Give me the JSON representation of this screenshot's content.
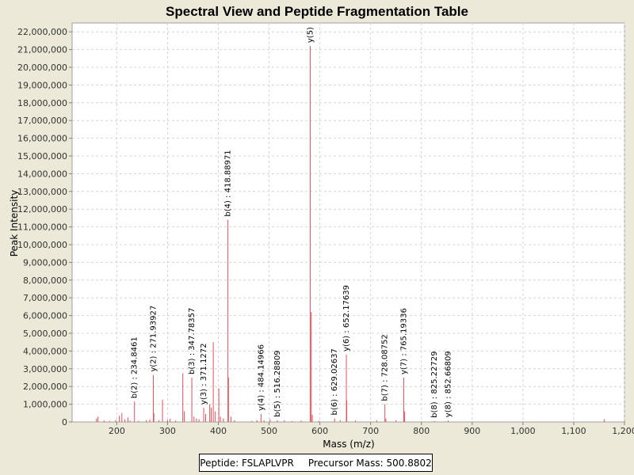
{
  "chart_data": {
    "type": "bar",
    "title": "Spectral View and Peptide Fragmentation Table",
    "xlabel": "Mass (m/z)",
    "ylabel": "Peak Intensity",
    "xlim": [
      112,
      1200
    ],
    "ylim": [
      0,
      22500000
    ],
    "x_ticks": [
      200,
      300,
      400,
      500,
      600,
      700,
      800,
      900,
      1000,
      1100,
      1200
    ],
    "x_tick_labels": [
      "200",
      "300",
      "400",
      "500",
      "600",
      "700",
      "800",
      "900",
      "1,000",
      "1,100",
      "1,200"
    ],
    "y_ticks": [
      0,
      1000000,
      2000000,
      3000000,
      4000000,
      5000000,
      6000000,
      7000000,
      8000000,
      9000000,
      10000000,
      11000000,
      12000000,
      13000000,
      14000000,
      15000000,
      16000000,
      17000000,
      18000000,
      19000000,
      20000000,
      21000000,
      22000000
    ],
    "y_tick_labels": [
      "0",
      "1,000,000",
      "2,000,000",
      "3,000,000",
      "4,000,000",
      "5,000,000",
      "6,000,000",
      "7,000,000",
      "8,000,000",
      "9,000,000",
      "10,000,000",
      "11,000,000",
      "12,000,000",
      "13,000,000",
      "14,000,000",
      "15,000,000",
      "16,000,000",
      "17,000,000",
      "18,000,000",
      "19,000,000",
      "20,000,000",
      "21,000,000",
      "22,000,000"
    ],
    "grid": true,
    "peak_color": "#e8505a",
    "peaks": [
      {
        "mz": 160,
        "intensity": 200000
      },
      {
        "mz": 163,
        "intensity": 300000
      },
      {
        "mz": 175,
        "intensity": 80000
      },
      {
        "mz": 186,
        "intensity": 60000
      },
      {
        "mz": 198,
        "intensity": 120000
      },
      {
        "mz": 205,
        "intensity": 350000
      },
      {
        "mz": 210,
        "intensity": 500000
      },
      {
        "mz": 216,
        "intensity": 150000
      },
      {
        "mz": 222,
        "intensity": 250000
      },
      {
        "mz": 226,
        "intensity": 80000
      },
      {
        "mz": 234.8461,
        "intensity": 1150000
      },
      {
        "mz": 243,
        "intensity": 60000
      },
      {
        "mz": 258,
        "intensity": 100000
      },
      {
        "mz": 265,
        "intensity": 150000
      },
      {
        "mz": 271.93927,
        "intensity": 2650000
      },
      {
        "mz": 273,
        "intensity": 500000
      },
      {
        "mz": 283,
        "intensity": 100000
      },
      {
        "mz": 290,
        "intensity": 1250000
      },
      {
        "mz": 300,
        "intensity": 120000
      },
      {
        "mz": 305,
        "intensity": 180000
      },
      {
        "mz": 316,
        "intensity": 80000
      },
      {
        "mz": 330,
        "intensity": 2750000
      },
      {
        "mz": 333,
        "intensity": 600000
      },
      {
        "mz": 347.78357,
        "intensity": 2500000
      },
      {
        "mz": 352,
        "intensity": 300000
      },
      {
        "mz": 357,
        "intensity": 200000
      },
      {
        "mz": 362,
        "intensity": 150000
      },
      {
        "mz": 371.1272,
        "intensity": 800000
      },
      {
        "mz": 375,
        "intensity": 450000
      },
      {
        "mz": 383,
        "intensity": 1000000
      },
      {
        "mz": 386,
        "intensity": 800000
      },
      {
        "mz": 390,
        "intensity": 4500000
      },
      {
        "mz": 394,
        "intensity": 600000
      },
      {
        "mz": 401,
        "intensity": 1900000
      },
      {
        "mz": 404,
        "intensity": 300000
      },
      {
        "mz": 410,
        "intensity": 200000
      },
      {
        "mz": 418.88971,
        "intensity": 11400000
      },
      {
        "mz": 420,
        "intensity": 2500000
      },
      {
        "mz": 425,
        "intensity": 300000
      },
      {
        "mz": 432,
        "intensity": 100000
      },
      {
        "mz": 466,
        "intensity": 60000
      },
      {
        "mz": 476,
        "intensity": 100000
      },
      {
        "mz": 484.14966,
        "intensity": 450000
      },
      {
        "mz": 490,
        "intensity": 100000
      },
      {
        "mz": 502,
        "intensity": 150000
      },
      {
        "mz": 516.28809,
        "intensity": 100000
      },
      {
        "mz": 530,
        "intensity": 100000
      },
      {
        "mz": 545,
        "intensity": 50000
      },
      {
        "mz": 563,
        "intensity": 80000
      },
      {
        "mz": 581,
        "intensity": 21200000
      },
      {
        "mz": 583,
        "intensity": 6200000
      },
      {
        "mz": 585,
        "intensity": 400000
      },
      {
        "mz": 598,
        "intensity": 60000
      },
      {
        "mz": 629.02637,
        "intensity": 200000
      },
      {
        "mz": 640,
        "intensity": 100000
      },
      {
        "mz": 652.17639,
        "intensity": 3800000
      },
      {
        "mz": 653,
        "intensity": 1200000
      },
      {
        "mz": 670,
        "intensity": 80000
      },
      {
        "mz": 712,
        "intensity": 100000
      },
      {
        "mz": 728.08752,
        "intensity": 1000000
      },
      {
        "mz": 730,
        "intensity": 200000
      },
      {
        "mz": 750,
        "intensity": 100000
      },
      {
        "mz": 765.19336,
        "intensity": 2500000
      },
      {
        "mz": 767,
        "intensity": 600000
      },
      {
        "mz": 825.22729,
        "intensity": 50000
      },
      {
        "mz": 852.66809,
        "intensity": 80000
      },
      {
        "mz": 1160,
        "intensity": 150000
      }
    ],
    "annotations": [
      {
        "label": "b(2) : 234.8461",
        "mz": 234.8461,
        "intensity": 1150000
      },
      {
        "label": "y(2) : 271.93927",
        "mz": 271.93927,
        "intensity": 2650000
      },
      {
        "label": "b(3) : 347.78357",
        "mz": 347.78357,
        "intensity": 2500000
      },
      {
        "label": "y(3) : 371.1272",
        "mz": 371.1272,
        "intensity": 800000
      },
      {
        "label": "b(4) : 418.88971",
        "mz": 418.88971,
        "intensity": 11400000
      },
      {
        "label": "y(4) : 484.14966",
        "mz": 484.14966,
        "intensity": 450000
      },
      {
        "label": "b(5) : 516.28809",
        "mz": 516.28809,
        "intensity": 100000
      },
      {
        "label": "y(5)",
        "mz": 581,
        "intensity": 21200000
      },
      {
        "label": "b(6) : 629.02637",
        "mz": 629.02637,
        "intensity": 200000
      },
      {
        "label": "y(6) : 652.17639",
        "mz": 652.17639,
        "intensity": 3800000
      },
      {
        "label": "b(7) : 728.08752",
        "mz": 728.08752,
        "intensity": 1000000
      },
      {
        "label": "y(7) : 765.19336",
        "mz": 765.19336,
        "intensity": 2500000
      },
      {
        "label": "b(8) : 825.22729",
        "mz": 825.22729,
        "intensity": 50000
      },
      {
        "label": "y(8) : 852.66809",
        "mz": 852.66809,
        "intensity": 80000
      }
    ]
  },
  "footer": {
    "peptide": "Peptide: FSLAPLVPR",
    "precursor": "Precursor Mass: 500.8802"
  }
}
